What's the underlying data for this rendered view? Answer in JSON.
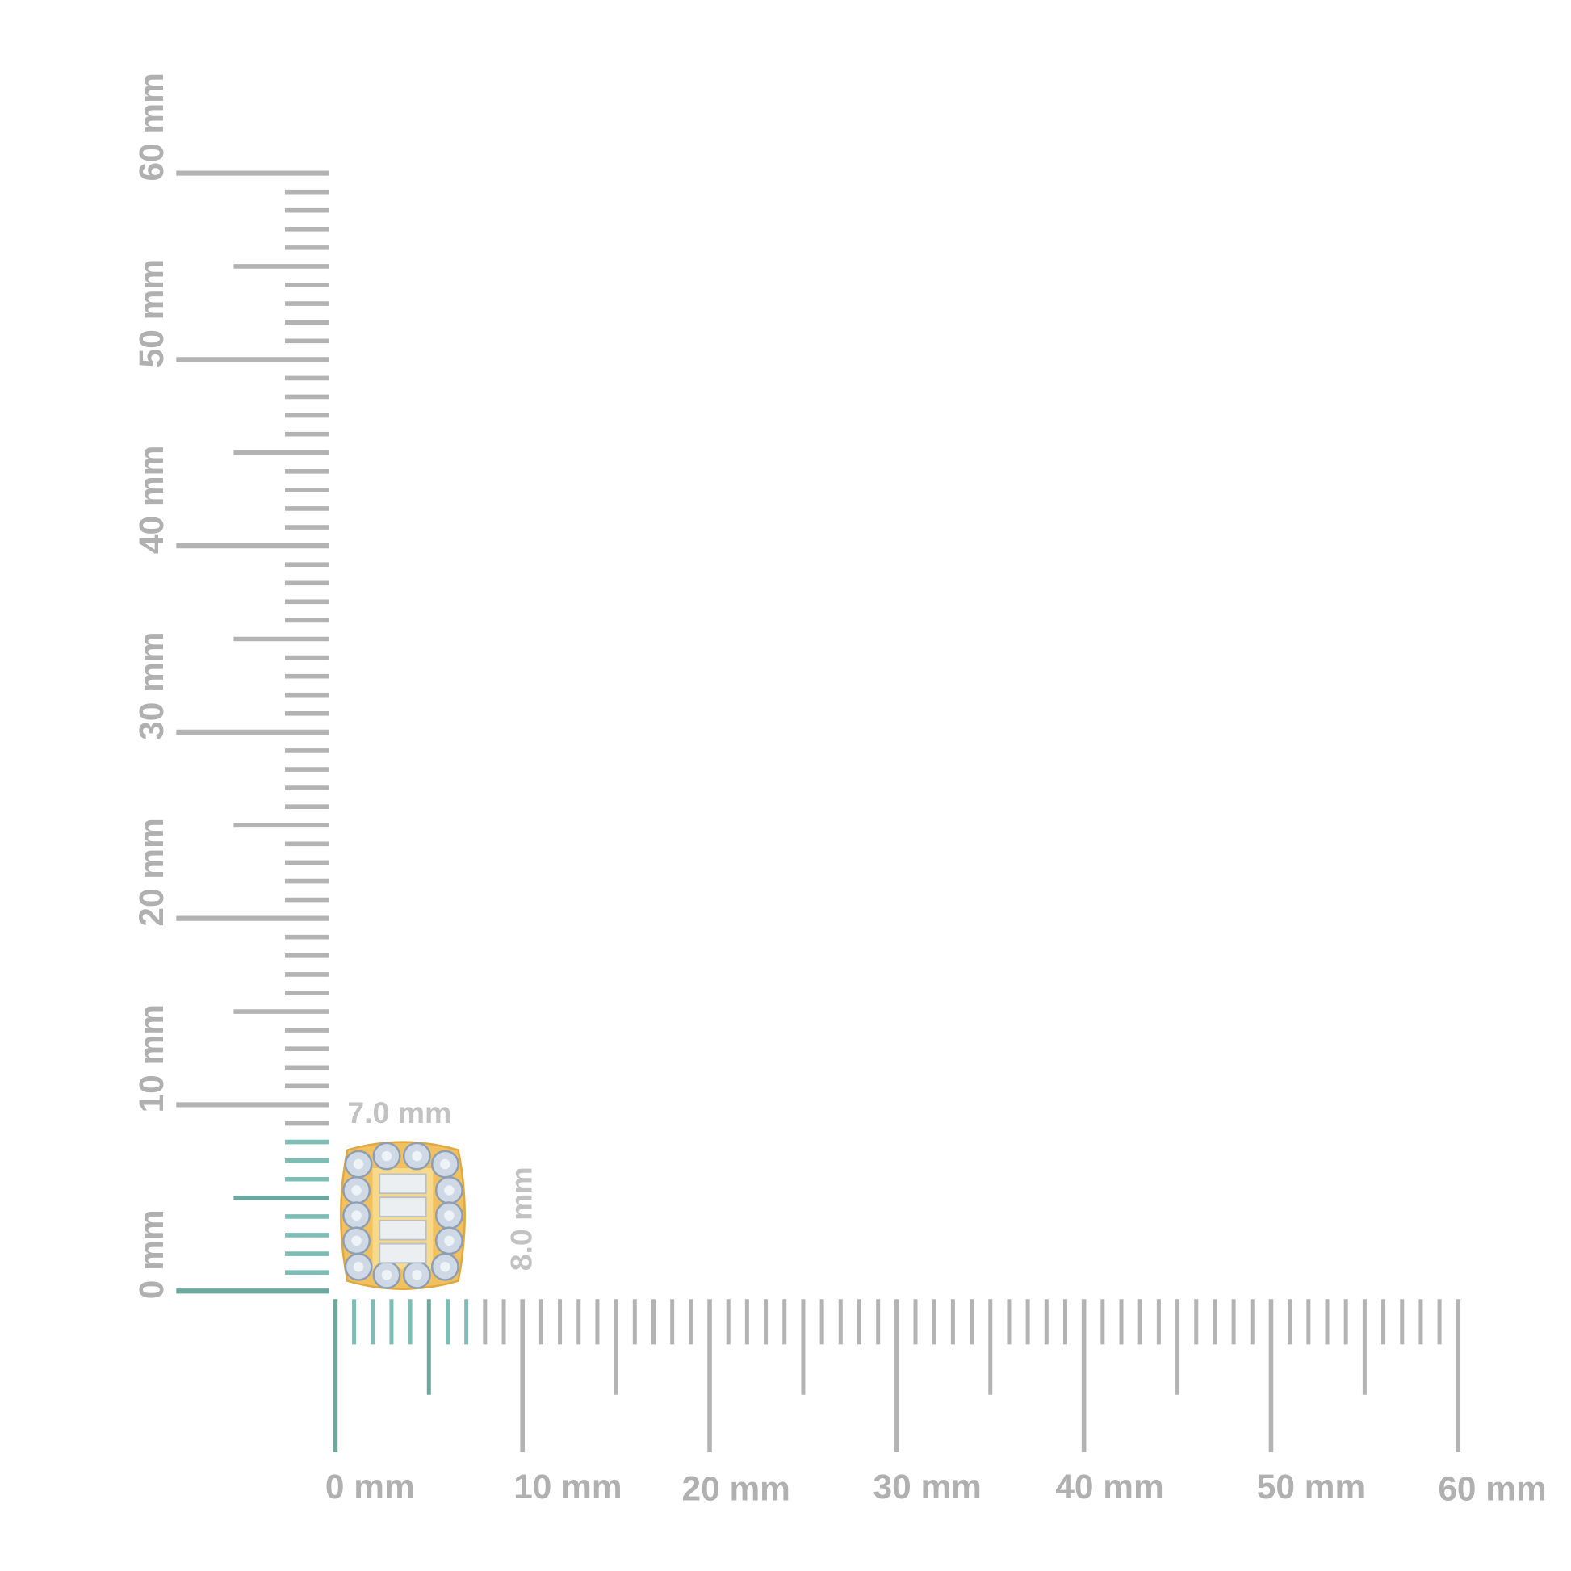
{
  "rulers": {
    "unit": "mm",
    "range_mm": [
      0,
      60
    ],
    "horizontal": {
      "labels": [
        "0 mm",
        "10 mm",
        "20 mm",
        "30 mm",
        "40 mm",
        "50 mm",
        "60 mm"
      ],
      "highlight_to_mm": 7
    },
    "vertical": {
      "labels": [
        "0 mm",
        "10 mm",
        "20 mm",
        "30 mm",
        "40 mm",
        "50 mm",
        "60 mm"
      ],
      "highlight_to_mm": 8
    },
    "colors": {
      "tick": "#b3b3b3",
      "highlight": "#7dbdb5",
      "highlight_dark": "#6aa8a0"
    }
  },
  "product": {
    "width_label": "7.0 mm",
    "height_label": "8.0 mm",
    "width_mm": 7.0,
    "height_mm": 8.0,
    "metal_color": "#f2c15e",
    "stone_color": "#cfd9e6"
  }
}
